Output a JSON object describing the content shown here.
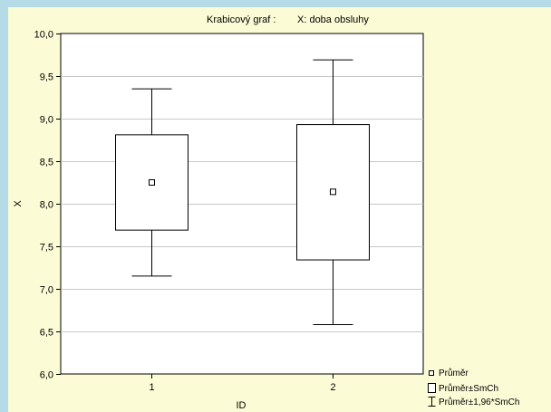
{
  "chart_data": {
    "type": "box",
    "title": "Krabicový  graf :",
    "subtitle": "X: doba obsluhy",
    "xlabel": "ID",
    "ylabel": "X",
    "categories": [
      "1",
      "2"
    ],
    "ylim": [
      6.0,
      10.0
    ],
    "yticks": [
      6.0,
      6.5,
      7.0,
      7.5,
      8.0,
      8.5,
      9.0,
      9.5,
      10.0
    ],
    "ytick_labels": [
      "6,0",
      "6,5",
      "7,0",
      "7,5",
      "8,0",
      "8,5",
      "9,0",
      "9,5",
      "10,0"
    ],
    "grid": true,
    "legend_placement": "bottom-right outside",
    "boxes": [
      {
        "category": "1",
        "mean": 8.25,
        "box_low": 7.69,
        "box_high": 8.81,
        "whisker_low": 7.15,
        "whisker_high": 9.35
      },
      {
        "category": "2",
        "mean": 8.14,
        "box_low": 7.34,
        "box_high": 8.93,
        "whisker_low": 6.58,
        "whisker_high": 9.69
      }
    ],
    "legend": [
      "Průměr",
      "Průměr±SmCh",
      "Průměr±1,96*SmCh"
    ]
  }
}
